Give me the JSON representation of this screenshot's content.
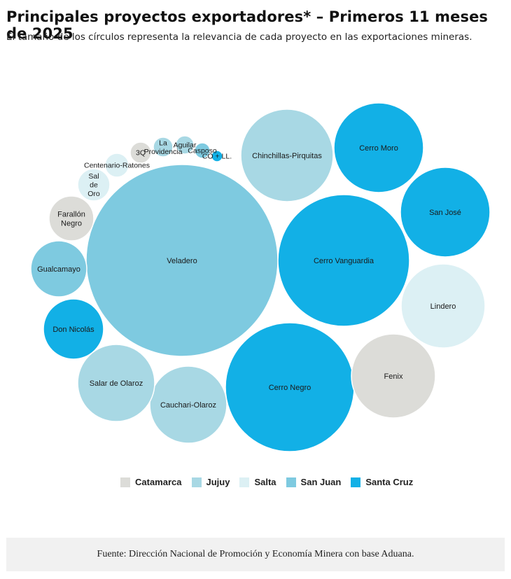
{
  "header": {
    "title": "Principales proyectos exportadores* – Primeros 11 meses de 2025",
    "subtitle": "El tamaño de los círculos representa la relevancia de cada proyecto en las exportaciones mineras."
  },
  "footer": {
    "source": "Fuente: Dirección Nacional de Promoción y Economía Minera con base Aduana."
  },
  "colors": {
    "Catamarca": "#dcdcd8",
    "Jujuy": "#a8d8e4",
    "Salta": "#dcf0f4",
    "San Juan": "#7ecae0",
    "Santa Cruz": "#12b0e6"
  },
  "chart_data": {
    "type": "bubble",
    "size_meaning": "relevancia de cada proyecto en las exportaciones mineras",
    "legend": [
      "Catamarca",
      "Jujuy",
      "Salta",
      "San Juan",
      "Santa Cruz"
    ],
    "legend_position": "bottom",
    "bubbles": [
      {
        "name": "Veladero",
        "province": "San Juan",
        "relative_size": 18.8
      },
      {
        "name": "Cerro Vanguardia",
        "province": "Santa Cruz",
        "relative_size": 8.9
      },
      {
        "name": "Cerro Negro",
        "province": "Santa Cruz",
        "relative_size": 8.6
      },
      {
        "name": "Chinchillas-Pirquitas",
        "province": "Jujuy",
        "relative_size": 4.3
      },
      {
        "name": "Cerro Moro",
        "province": "Santa Cruz",
        "relative_size": 4.0
      },
      {
        "name": "San José",
        "province": "Santa Cruz",
        "relative_size": 4.1
      },
      {
        "name": "Lindero",
        "province": "Salta",
        "relative_size": 3.6
      },
      {
        "name": "Fenix",
        "province": "Catamarca",
        "relative_size": 3.6
      },
      {
        "name": "Cauchari-Olaroz",
        "province": "Jujuy",
        "relative_size": 3.1
      },
      {
        "name": "Salar de Olaroz",
        "province": "Jujuy",
        "relative_size": 3.1
      },
      {
        "name": "Don Nicolás",
        "province": "Santa Cruz",
        "relative_size": 1.9
      },
      {
        "name": "Gualcamayo",
        "province": "San Juan",
        "relative_size": 1.7
      },
      {
        "name": "Farallón Negro",
        "province": "Catamarca",
        "relative_size": 1.0
      },
      {
        "name": "Sal de Oro",
        "province": "Salta",
        "relative_size": 0.55
      },
      {
        "name": "Centenario-Ratones",
        "province": "Salta",
        "relative_size": 0.3
      },
      {
        "name": "3Q",
        "province": "Catamarca",
        "relative_size": 0.2
      },
      {
        "name": "La Providencia",
        "province": "Jujuy",
        "relative_size": 0.15
      },
      {
        "name": "Aguilar",
        "province": "Jujuy",
        "relative_size": 0.13
      },
      {
        "name": "Casposo",
        "province": "San Juan",
        "relative_size": 0.09
      },
      {
        "name": "CO + LL",
        "province": "Santa Cruz",
        "relative_size": 0.05
      }
    ]
  }
}
